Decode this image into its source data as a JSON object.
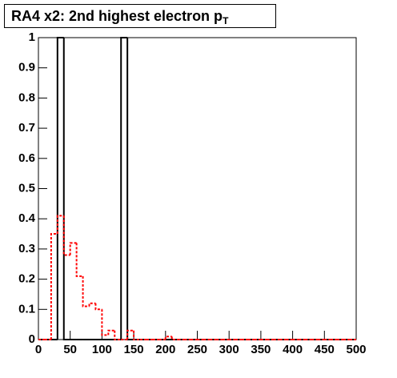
{
  "chart_data": {
    "type": "histogram",
    "title": "RA4 x2: 2nd highest electron p",
    "title_subscript": "T",
    "bins": [
      0,
      10,
      20,
      30,
      40,
      50,
      60,
      70,
      80,
      90,
      100,
      110,
      120,
      130,
      140,
      150,
      160,
      170,
      180,
      190,
      200,
      210,
      220,
      230,
      240,
      250,
      260,
      270,
      280,
      290,
      300,
      310,
      320,
      330,
      340,
      350,
      360,
      370,
      380,
      390,
      400,
      410,
      420,
      430,
      440,
      450,
      460,
      470,
      480,
      490,
      500
    ],
    "series": [
      {
        "color": "#000000",
        "dashed": false,
        "values": [
          0,
          0,
          0,
          1,
          0,
          0,
          0,
          0,
          0,
          0,
          0,
          0,
          0,
          1,
          0,
          0,
          0,
          0,
          0,
          0,
          0,
          0,
          0,
          0,
          0,
          0,
          0,
          0,
          0,
          0,
          0,
          0,
          0,
          0,
          0,
          0,
          0,
          0,
          0,
          0,
          0,
          0,
          0,
          0,
          0,
          0,
          0,
          0,
          0,
          0
        ]
      },
      {
        "color": "#ff0000",
        "dashed": true,
        "values": [
          0,
          0,
          0.35,
          0.41,
          0.28,
          0.32,
          0.21,
          0.11,
          0.12,
          0.1,
          0.015,
          0.03,
          0,
          0,
          0.03,
          0,
          0,
          0,
          0,
          0,
          0.01,
          0,
          0,
          0,
          0,
          0,
          0,
          0,
          0,
          0,
          0,
          0,
          0,
          0,
          0,
          0,
          0,
          0,
          0,
          0,
          0,
          0,
          0,
          0,
          0,
          0,
          0,
          0,
          0,
          0
        ]
      }
    ],
    "xlim": [
      0,
      500
    ],
    "xticks": [
      0,
      50,
      100,
      150,
      200,
      250,
      300,
      350,
      400,
      450,
      500
    ],
    "ylim": [
      0,
      1
    ],
    "yticks": [
      0,
      0.1,
      0.2,
      0.3,
      0.4,
      0.5,
      0.6,
      0.7,
      0.8,
      0.9,
      1
    ]
  }
}
